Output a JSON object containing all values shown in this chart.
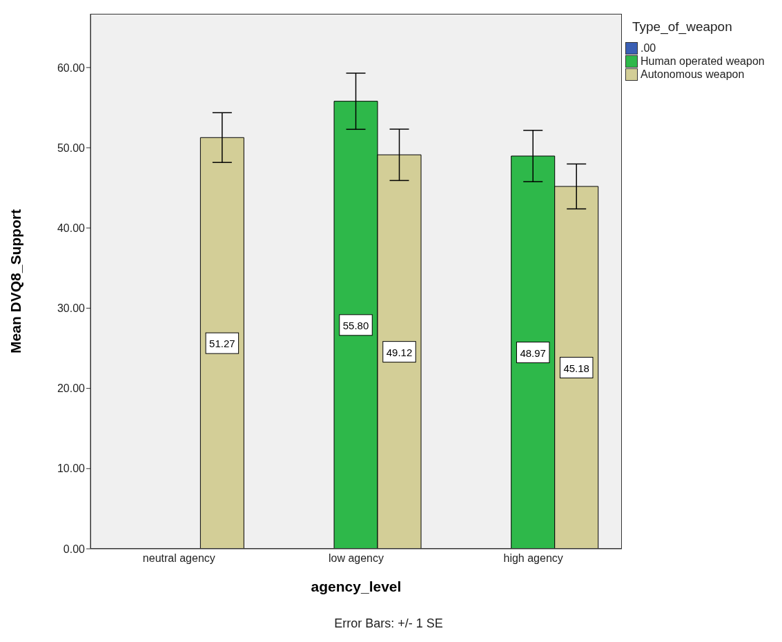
{
  "chart_data": {
    "type": "bar",
    "xlabel": "agency_level",
    "ylabel": "Mean DVQ8_Support",
    "legend_title": "Type_of_weapon",
    "annotations": [
      "Error Bars: +/- 1 SE"
    ],
    "categories": [
      "neutral agency",
      "low agency",
      "high agency"
    ],
    "series": [
      {
        "name": ".00",
        "color": "#3a5fb4",
        "values": [
          null,
          null,
          null
        ],
        "errors": [
          null,
          null,
          null
        ]
      },
      {
        "name": "Human operated weapon",
        "color": "#2eb84a",
        "values": [
          null,
          55.8,
          48.97
        ],
        "errors": [
          null,
          3.5,
          3.2
        ],
        "value_labels": [
          null,
          "55.80",
          "48.97"
        ]
      },
      {
        "name": "Autonomous weapon",
        "color": "#d3ce97",
        "values": [
          51.27,
          49.12,
          45.18
        ],
        "errors": [
          3.1,
          3.2,
          2.8
        ],
        "value_labels": [
          "51.27",
          "49.12",
          "45.18"
        ]
      }
    ],
    "ylim": [
      0,
      66.7
    ],
    "yticks": [
      {
        "value": 0,
        "label": "0.00"
      },
      {
        "value": 10,
        "label": "10.00"
      },
      {
        "value": 20,
        "label": "20.00"
      },
      {
        "value": 30,
        "label": "30.00"
      },
      {
        "value": 40,
        "label": "40.00"
      },
      {
        "value": 50,
        "label": "50.00"
      },
      {
        "value": 60,
        "label": "60.00"
      }
    ],
    "grid": false,
    "legend": "top right"
  }
}
